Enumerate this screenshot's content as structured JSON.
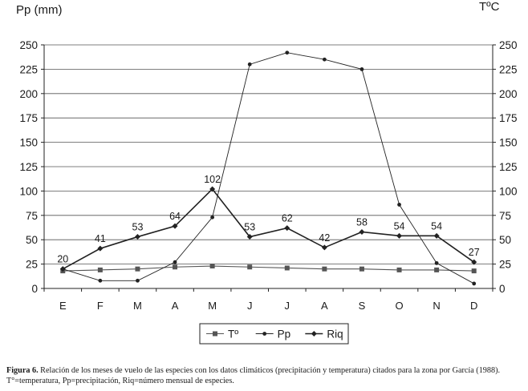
{
  "chart_data": {
    "type": "line",
    "left_axis_title": "Pp (mm)",
    "right_axis_title": "TºC",
    "categories": [
      "E",
      "F",
      "M",
      "A",
      "M",
      "J",
      "J",
      "A",
      "S",
      "O",
      "N",
      "D"
    ],
    "ylim": [
      0,
      250
    ],
    "y_ticks": [
      0,
      25,
      50,
      75,
      100,
      125,
      150,
      175,
      200,
      225,
      250
    ],
    "grid": "horizontal",
    "legend_position": "bottom-center",
    "series": [
      {
        "name": "Tº",
        "marker": "square",
        "color": "#555555",
        "values": [
          18,
          19,
          20,
          22,
          23,
          22,
          21,
          20,
          20,
          19,
          19,
          18
        ]
      },
      {
        "name": "Pp",
        "marker": "dot",
        "color": "#222222",
        "values": [
          20,
          8,
          8,
          27,
          73,
          230,
          242,
          235,
          225,
          86,
          26,
          5
        ]
      },
      {
        "name": "Riq",
        "marker": "diamond",
        "color": "#222222",
        "values": [
          20,
          41,
          53,
          64,
          102,
          53,
          62,
          42,
          58,
          54,
          54,
          27
        ],
        "labels": [
          "20",
          "41",
          "53",
          "64",
          "102",
          "53",
          "62",
          "42",
          "58",
          "54",
          "54",
          "27"
        ]
      }
    ]
  },
  "caption": {
    "prefix": "Figura 6.",
    "text": " Relación de los meses de vuelo de las especies con los datos climáticos (precipitación y temperatura) citados para la zona por García (1988). T°=temperatura, Pp=precipitación, Riq=número mensual de especies."
  }
}
